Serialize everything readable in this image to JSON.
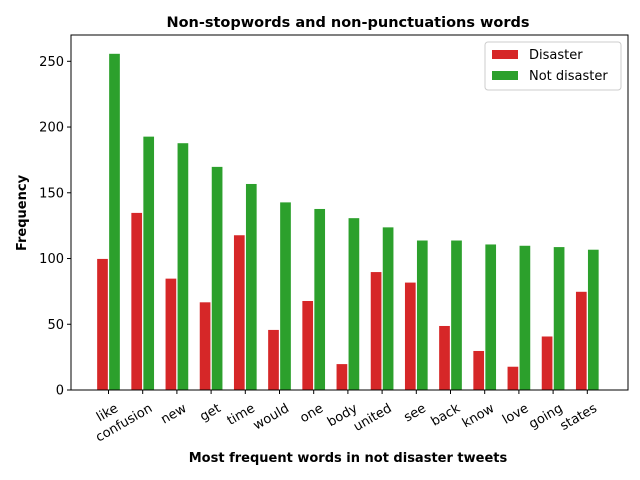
{
  "chart_data": {
    "type": "bar",
    "title": "Non-stopwords and non-punctuations words",
    "xlabel": "Most frequent words in not disaster tweets",
    "ylabel": "Frequency",
    "categories": [
      "like",
      "confusion",
      "new",
      "get",
      "time",
      "would",
      "one",
      "body",
      "united",
      "see",
      "back",
      "know",
      "love",
      "going",
      "states"
    ],
    "series": [
      {
        "name": "Disaster",
        "color": "#d62728",
        "values": [
          100,
          135,
          85,
          67,
          118,
          46,
          68,
          20,
          90,
          82,
          49,
          30,
          18,
          41,
          75
        ]
      },
      {
        "name": "Not disaster",
        "color": "#2ca02c",
        "values": [
          256,
          193,
          188,
          170,
          157,
          143,
          138,
          131,
          124,
          114,
          114,
          111,
          110,
          109,
          107
        ]
      }
    ],
    "ylim": [
      0,
      270
    ],
    "yticks": [
      "0",
      "50",
      "100",
      "150",
      "200",
      "250"
    ],
    "legend_position": "top-right",
    "grid": false
  }
}
